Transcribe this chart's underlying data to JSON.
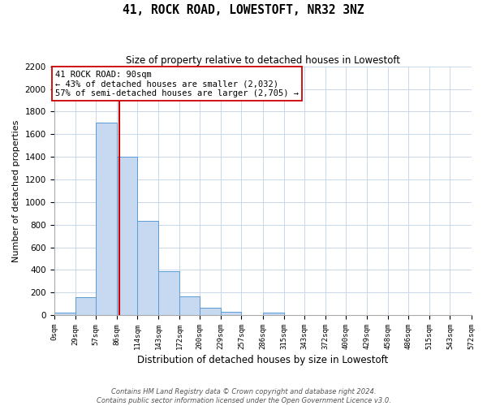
{
  "title": "41, ROCK ROAD, LOWESTOFT, NR32 3NZ",
  "subtitle": "Size of property relative to detached houses in Lowestoft",
  "xlabel": "Distribution of detached houses by size in Lowestoft",
  "ylabel": "Number of detached properties",
  "bin_edges": [
    0,
    29,
    57,
    86,
    114,
    143,
    172,
    200,
    229,
    257,
    286,
    315,
    343,
    372,
    400,
    429,
    458,
    486,
    515,
    543,
    572
  ],
  "bin_labels": [
    "0sqm",
    "29sqm",
    "57sqm",
    "86sqm",
    "114sqm",
    "143sqm",
    "172sqm",
    "200sqm",
    "229sqm",
    "257sqm",
    "286sqm",
    "315sqm",
    "343sqm",
    "372sqm",
    "400sqm",
    "429sqm",
    "458sqm",
    "486sqm",
    "515sqm",
    "543sqm",
    "572sqm"
  ],
  "bar_heights": [
    20,
    155,
    1700,
    1400,
    830,
    385,
    165,
    65,
    30,
    0,
    25,
    0,
    0,
    0,
    0,
    0,
    0,
    0,
    0,
    0
  ],
  "bar_color": "#c6d9f0",
  "bar_edge_color": "#5b9bd5",
  "vline_x": 90,
  "vline_color": "#cc0000",
  "annotation_title": "41 ROCK ROAD: 90sqm",
  "annotation_line1": "← 43% of detached houses are smaller (2,032)",
  "annotation_line2": "57% of semi-detached houses are larger (2,705) →",
  "annotation_box_edge": "#cc0000",
  "ylim": [
    0,
    2200
  ],
  "yticks": [
    0,
    200,
    400,
    600,
    800,
    1000,
    1200,
    1400,
    1600,
    1800,
    2000,
    2200
  ],
  "footer1": "Contains HM Land Registry data © Crown copyright and database right 2024.",
  "footer2": "Contains public sector information licensed under the Open Government Licence v3.0.",
  "bg_color": "#ffffff",
  "grid_color": "#c8d8ea"
}
